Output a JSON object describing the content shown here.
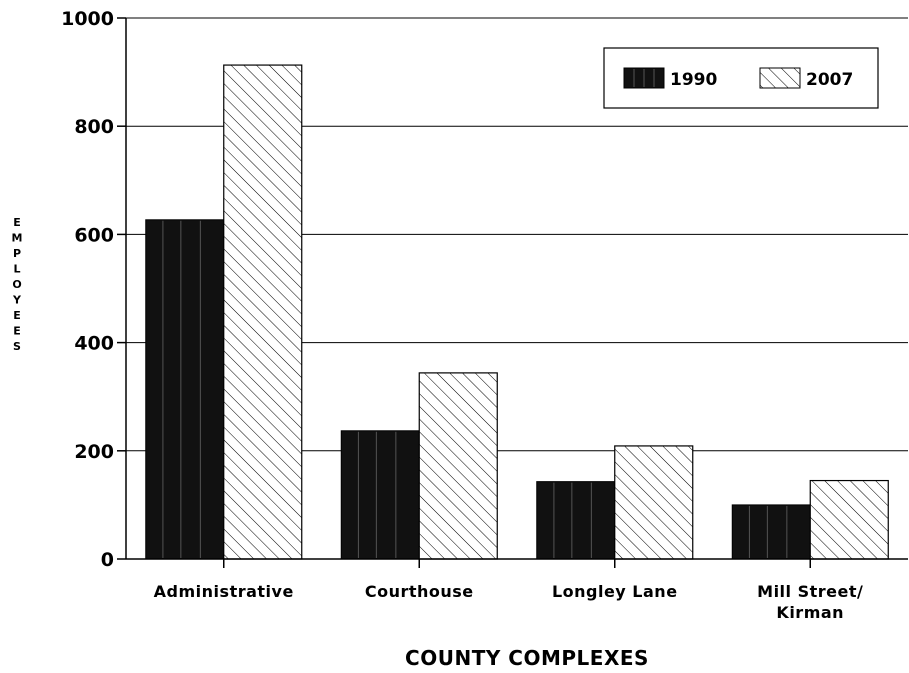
{
  "chart_data": {
    "type": "bar",
    "categories": [
      "Administrative",
      "Courthouse",
      "Longley Lane",
      "Mill Street/\nKirman"
    ],
    "series": [
      {
        "name": "1990",
        "values": [
          627,
          237,
          143,
          100
        ],
        "color": "#111111",
        "pattern": "solid-dark"
      },
      {
        "name": "2007",
        "values": [
          913,
          344,
          209,
          145
        ],
        "color": "#ffffff",
        "pattern": "diagonal-hatch"
      }
    ],
    "xlabel": "COUNTY COMPLEXES",
    "ylabel": "EMPLOYEES",
    "ylim": [
      0,
      1000
    ],
    "yticks": [
      0,
      200,
      400,
      600,
      800,
      1000
    ],
    "grid": true,
    "legend_position": "top-right"
  }
}
